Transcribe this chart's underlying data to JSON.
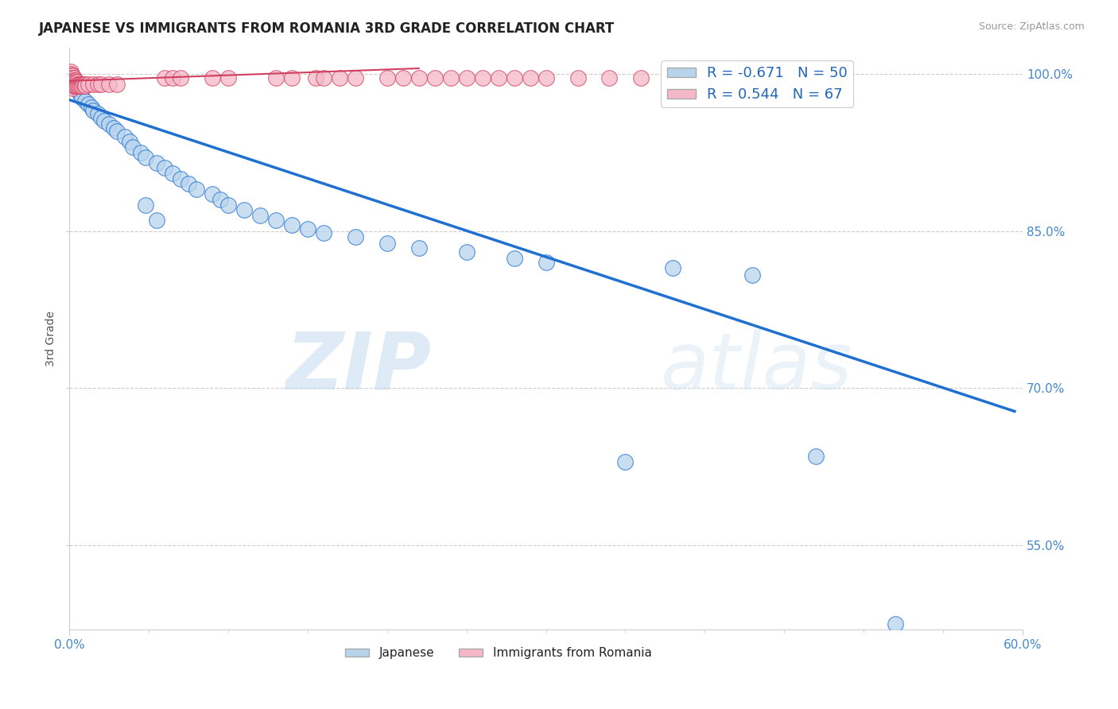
{
  "title": "JAPANESE VS IMMIGRANTS FROM ROMANIA 3RD GRADE CORRELATION CHART",
  "source_text": "Source: ZipAtlas.com",
  "ylabel": "3rd Grade",
  "watermark_zip": "ZIP",
  "watermark_atlas": "atlas",
  "legend_r_blue": "-0.671",
  "legend_n_blue": "50",
  "legend_r_pink": "0.544",
  "legend_n_pink": "67",
  "blue_color": "#b8d4ed",
  "pink_color": "#f5b8c8",
  "line_blue_color": "#2070d0",
  "line_pink_color": "#d04060",
  "xlim": [
    0.0,
    0.6
  ],
  "ylim": [
    0.47,
    1.025
  ],
  "ytick_vals": [
    0.55,
    0.7,
    0.85,
    1.0
  ],
  "ytick_labels": [
    "55.0%",
    "70.0%",
    "85.0%",
    "100.0%"
  ],
  "blue_line_x": [
    0.0,
    0.595
  ],
  "blue_line_y": [
    0.975,
    0.678
  ],
  "pink_line_x": [
    0.0,
    0.22
  ],
  "pink_line_y": [
    0.993,
    1.005
  ],
  "blue_scatter": [
    [
      0.001,
      0.998
    ],
    [
      0.002,
      0.995
    ],
    [
      0.003,
      0.992
    ],
    [
      0.004,
      0.989
    ],
    [
      0.005,
      0.986
    ],
    [
      0.006,
      0.983
    ],
    [
      0.007,
      0.98
    ],
    [
      0.008,
      0.977
    ],
    [
      0.01,
      0.974
    ],
    [
      0.012,
      0.971
    ],
    [
      0.014,
      0.968
    ],
    [
      0.015,
      0.965
    ],
    [
      0.018,
      0.962
    ],
    [
      0.02,
      0.958
    ],
    [
      0.022,
      0.955
    ],
    [
      0.025,
      0.952
    ],
    [
      0.028,
      0.948
    ],
    [
      0.03,
      0.945
    ],
    [
      0.035,
      0.94
    ],
    [
      0.038,
      0.935
    ],
    [
      0.04,
      0.93
    ],
    [
      0.045,
      0.925
    ],
    [
      0.048,
      0.92
    ],
    [
      0.055,
      0.915
    ],
    [
      0.06,
      0.91
    ],
    [
      0.065,
      0.905
    ],
    [
      0.07,
      0.9
    ],
    [
      0.075,
      0.895
    ],
    [
      0.08,
      0.89
    ],
    [
      0.09,
      0.885
    ],
    [
      0.095,
      0.88
    ],
    [
      0.1,
      0.875
    ],
    [
      0.11,
      0.87
    ],
    [
      0.12,
      0.865
    ],
    [
      0.13,
      0.86
    ],
    [
      0.14,
      0.856
    ],
    [
      0.15,
      0.852
    ],
    [
      0.16,
      0.848
    ],
    [
      0.18,
      0.844
    ],
    [
      0.2,
      0.838
    ],
    [
      0.22,
      0.834
    ],
    [
      0.25,
      0.83
    ],
    [
      0.28,
      0.824
    ],
    [
      0.3,
      0.82
    ],
    [
      0.35,
      0.63
    ],
    [
      0.38,
      0.815
    ],
    [
      0.43,
      0.808
    ],
    [
      0.47,
      0.635
    ],
    [
      0.52,
      0.475
    ],
    [
      0.048,
      0.875
    ],
    [
      0.055,
      0.86
    ]
  ],
  "pink_scatter": [
    [
      0.001,
      1.002
    ],
    [
      0.001,
      1.0
    ],
    [
      0.001,
      0.998
    ],
    [
      0.001,
      0.996
    ],
    [
      0.001,
      0.994
    ],
    [
      0.001,
      0.992
    ],
    [
      0.001,
      0.99
    ],
    [
      0.001,
      0.988
    ],
    [
      0.002,
      0.998
    ],
    [
      0.002,
      0.996
    ],
    [
      0.002,
      0.994
    ],
    [
      0.002,
      0.992
    ],
    [
      0.002,
      0.99
    ],
    [
      0.002,
      0.988
    ],
    [
      0.002,
      0.986
    ],
    [
      0.003,
      0.996
    ],
    [
      0.003,
      0.994
    ],
    [
      0.003,
      0.992
    ],
    [
      0.003,
      0.99
    ],
    [
      0.003,
      0.988
    ],
    [
      0.004,
      0.994
    ],
    [
      0.004,
      0.992
    ],
    [
      0.004,
      0.99
    ],
    [
      0.004,
      0.988
    ],
    [
      0.005,
      0.992
    ],
    [
      0.005,
      0.99
    ],
    [
      0.005,
      0.988
    ],
    [
      0.006,
      0.99
    ],
    [
      0.006,
      0.988
    ],
    [
      0.007,
      0.99
    ],
    [
      0.007,
      0.988
    ],
    [
      0.008,
      0.99
    ],
    [
      0.008,
      0.988
    ],
    [
      0.009,
      0.99
    ],
    [
      0.01,
      0.99
    ],
    [
      0.01,
      0.988
    ],
    [
      0.012,
      0.99
    ],
    [
      0.015,
      0.99
    ],
    [
      0.018,
      0.99
    ],
    [
      0.02,
      0.99
    ],
    [
      0.025,
      0.99
    ],
    [
      0.03,
      0.99
    ],
    [
      0.06,
      0.996
    ],
    [
      0.065,
      0.996
    ],
    [
      0.07,
      0.996
    ],
    [
      0.09,
      0.996
    ],
    [
      0.1,
      0.996
    ],
    [
      0.13,
      0.996
    ],
    [
      0.14,
      0.996
    ],
    [
      0.155,
      0.996
    ],
    [
      0.16,
      0.996
    ],
    [
      0.17,
      0.996
    ],
    [
      0.18,
      0.996
    ],
    [
      0.2,
      0.996
    ],
    [
      0.21,
      0.996
    ],
    [
      0.22,
      0.996
    ],
    [
      0.23,
      0.996
    ],
    [
      0.24,
      0.996
    ],
    [
      0.25,
      0.996
    ],
    [
      0.26,
      0.996
    ],
    [
      0.27,
      0.996
    ],
    [
      0.28,
      0.996
    ],
    [
      0.29,
      0.996
    ],
    [
      0.3,
      0.996
    ],
    [
      0.32,
      0.996
    ],
    [
      0.34,
      0.996
    ],
    [
      0.36,
      0.996
    ]
  ]
}
